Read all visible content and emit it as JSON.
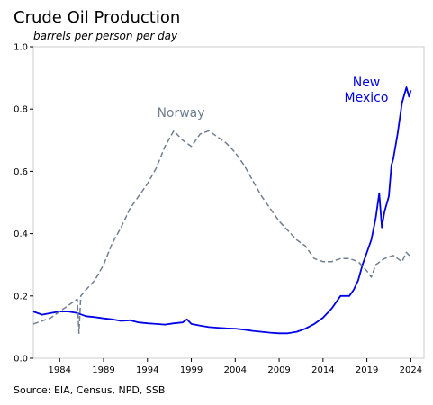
{
  "chart_data": {
    "type": "line",
    "title": "Crude Oil Production",
    "subtitle": "barrels per person per day",
    "source": "Source: EIA, Census, NPD, SSB",
    "xlim": [
      1981,
      2025.5
    ],
    "ylim": [
      0,
      1
    ],
    "x_ticks": [
      1984,
      1989,
      1994,
      1999,
      2004,
      2009,
      2014,
      2019,
      2024
    ],
    "y_ticks": [
      0.0,
      0.2,
      0.4,
      0.6,
      0.8,
      1.0
    ],
    "y_tick_labels": [
      "0.0",
      "0.2",
      "0.4",
      "0.6",
      "0.8",
      "1.0"
    ],
    "grid": false,
    "series": [
      {
        "name": "New Mexico",
        "label_lines": [
          "New",
          "Mexico"
        ],
        "color": "#0000e6",
        "style": "solid",
        "points": [
          [
            1981.0,
            0.15
          ],
          [
            1982.0,
            0.14
          ],
          [
            1983.0,
            0.145
          ],
          [
            1984.0,
            0.15
          ],
          [
            1985.0,
            0.15
          ],
          [
            1986.0,
            0.145
          ],
          [
            1987.0,
            0.135
          ],
          [
            1988.0,
            0.132
          ],
          [
            1989.0,
            0.128
          ],
          [
            1990.0,
            0.125
          ],
          [
            1991.0,
            0.12
          ],
          [
            1992.0,
            0.122
          ],
          [
            1993.0,
            0.115
          ],
          [
            1994.0,
            0.112
          ],
          [
            1995.0,
            0.11
          ],
          [
            1996.0,
            0.108
          ],
          [
            1997.0,
            0.112
          ],
          [
            1998.0,
            0.115
          ],
          [
            1998.5,
            0.125
          ],
          [
            1999.0,
            0.11
          ],
          [
            2000.0,
            0.105
          ],
          [
            2001.0,
            0.1
          ],
          [
            2002.0,
            0.098
          ],
          [
            2003.0,
            0.096
          ],
          [
            2004.0,
            0.095
          ],
          [
            2005.0,
            0.092
          ],
          [
            2006.0,
            0.088
          ],
          [
            2007.0,
            0.085
          ],
          [
            2008.0,
            0.082
          ],
          [
            2009.0,
            0.08
          ],
          [
            2010.0,
            0.08
          ],
          [
            2011.0,
            0.085
          ],
          [
            2012.0,
            0.095
          ],
          [
            2013.0,
            0.11
          ],
          [
            2014.0,
            0.13
          ],
          [
            2015.0,
            0.16
          ],
          [
            2016.0,
            0.2
          ],
          [
            2017.0,
            0.2
          ],
          [
            2017.5,
            0.22
          ],
          [
            2018.0,
            0.25
          ],
          [
            2018.5,
            0.3
          ],
          [
            2019.0,
            0.34
          ],
          [
            2019.5,
            0.38
          ],
          [
            2020.0,
            0.45
          ],
          [
            2020.4,
            0.53
          ],
          [
            2020.7,
            0.42
          ],
          [
            2021.0,
            0.47
          ],
          [
            2021.5,
            0.52
          ],
          [
            2021.8,
            0.62
          ],
          [
            2022.0,
            0.64
          ],
          [
            2022.5,
            0.72
          ],
          [
            2023.0,
            0.82
          ],
          [
            2023.5,
            0.87
          ],
          [
            2023.8,
            0.84
          ],
          [
            2024.0,
            0.86
          ]
        ]
      },
      {
        "name": "Norway",
        "label_lines": [
          "Norway"
        ],
        "color": "#708090",
        "style": "dashed",
        "points": [
          [
            1981.0,
            0.11
          ],
          [
            1982.0,
            0.12
          ],
          [
            1983.0,
            0.13
          ],
          [
            1984.0,
            0.15
          ],
          [
            1985.0,
            0.17
          ],
          [
            1986.0,
            0.19
          ],
          [
            1986.2,
            0.08
          ],
          [
            1986.4,
            0.2
          ],
          [
            1987.0,
            0.22
          ],
          [
            1988.0,
            0.25
          ],
          [
            1989.0,
            0.3
          ],
          [
            1990.0,
            0.37
          ],
          [
            1991.0,
            0.42
          ],
          [
            1992.0,
            0.48
          ],
          [
            1993.0,
            0.52
          ],
          [
            1994.0,
            0.56
          ],
          [
            1995.0,
            0.61
          ],
          [
            1996.0,
            0.68
          ],
          [
            1997.0,
            0.73
          ],
          [
            1998.0,
            0.7
          ],
          [
            1999.0,
            0.68
          ],
          [
            2000.0,
            0.72
          ],
          [
            2001.0,
            0.73
          ],
          [
            2002.0,
            0.71
          ],
          [
            2003.0,
            0.69
          ],
          [
            2004.0,
            0.66
          ],
          [
            2005.0,
            0.62
          ],
          [
            2006.0,
            0.57
          ],
          [
            2007.0,
            0.52
          ],
          [
            2008.0,
            0.48
          ],
          [
            2009.0,
            0.44
          ],
          [
            2010.0,
            0.41
          ],
          [
            2011.0,
            0.38
          ],
          [
            2012.0,
            0.36
          ],
          [
            2013.0,
            0.32
          ],
          [
            2014.0,
            0.31
          ],
          [
            2015.0,
            0.31
          ],
          [
            2016.0,
            0.32
          ],
          [
            2017.0,
            0.32
          ],
          [
            2018.0,
            0.31
          ],
          [
            2019.0,
            0.28
          ],
          [
            2019.5,
            0.26
          ],
          [
            2020.0,
            0.3
          ],
          [
            2021.0,
            0.32
          ],
          [
            2022.0,
            0.33
          ],
          [
            2022.5,
            0.32
          ],
          [
            2023.0,
            0.31
          ],
          [
            2023.5,
            0.34
          ],
          [
            2024.0,
            0.325
          ]
        ]
      }
    ]
  }
}
